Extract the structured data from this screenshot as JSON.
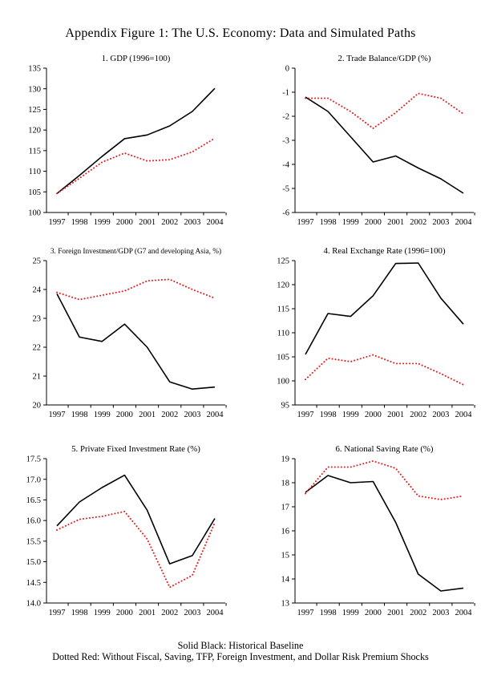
{
  "title": "Appendix Figure 1: The U.S. Economy: Data and Simulated Paths",
  "footer": {
    "line1": "Solid Black: Historical Baseline",
    "line2": "Dotted Red: Without Fiscal, Saving, TFP, Foreign Investment, and Dollar Risk Premium Shocks"
  },
  "colors": {
    "baseline": "#000000",
    "counterfactual": "#e62020"
  },
  "legend": [
    {
      "label": "Historical Baseline",
      "style": "solid-black"
    },
    {
      "label": "Without Fiscal, Saving, TFP, Foreign Investment, and Dollar Risk Premium Shocks",
      "style": "dotted-red"
    }
  ],
  "chart_data": [
    {
      "type": "line",
      "title": "1. GDP (1996=100)",
      "ylim": [
        100,
        135
      ],
      "yticks": [
        "100",
        "105",
        "110",
        "115",
        "120",
        "125",
        "130",
        "135"
      ],
      "categories": [
        "1997",
        "1998",
        "1999",
        "2000",
        "2001",
        "2002",
        "2003",
        "2004"
      ],
      "series": [
        {
          "name": "Historical Baseline",
          "style": "solid-black",
          "values": [
            104.6,
            109.0,
            113.6,
            117.9,
            118.8,
            121.0,
            124.5,
            130.1
          ]
        },
        {
          "name": "Without Shocks",
          "style": "dotted-red",
          "values": [
            104.6,
            108.3,
            112.2,
            114.4,
            112.5,
            112.8,
            114.7,
            118.0
          ]
        }
      ]
    },
    {
      "type": "line",
      "title": "2. Trade Balance/GDP (%)",
      "ylim": [
        -6,
        0
      ],
      "yticks": [
        "-6",
        "-5",
        "-4",
        "-3",
        "-2",
        "-1",
        "0"
      ],
      "categories": [
        "1997",
        "1998",
        "1999",
        "2000",
        "2001",
        "2002",
        "2003",
        "2004"
      ],
      "series": [
        {
          "name": "Historical Baseline",
          "style": "solid-black",
          "values": [
            -1.2,
            -1.8,
            -2.85,
            -3.9,
            -3.65,
            -4.15,
            -4.6,
            -5.2
          ]
        },
        {
          "name": "Without Shocks",
          "style": "dotted-red",
          "values": [
            -1.25,
            -1.25,
            -1.8,
            -2.5,
            -1.85,
            -1.05,
            -1.25,
            -1.9
          ]
        }
      ]
    },
    {
      "type": "line",
      "title": "3. Foreign Investment/GDP (G7 and developing Asia, %)",
      "ylim": [
        20,
        25
      ],
      "yticks": [
        "20",
        "21",
        "22",
        "23",
        "24",
        "25"
      ],
      "categories": [
        "1997",
        "1998",
        "1999",
        "2000",
        "2001",
        "2002",
        "2003",
        "2004"
      ],
      "series": [
        {
          "name": "Historical Baseline",
          "style": "solid-black",
          "values": [
            23.85,
            22.35,
            22.2,
            22.8,
            22.0,
            20.8,
            20.55,
            20.62
          ]
        },
        {
          "name": "Without Shocks",
          "style": "dotted-red",
          "values": [
            23.9,
            23.65,
            23.8,
            23.95,
            24.3,
            24.35,
            24.0,
            23.7
          ]
        }
      ]
    },
    {
      "type": "line",
      "title": "4. Real Exchange Rate (1996=100)",
      "ylim": [
        95,
        125
      ],
      "yticks": [
        "95",
        "100",
        "105",
        "110",
        "115",
        "120",
        "125"
      ],
      "categories": [
        "1997",
        "1998",
        "1999",
        "2000",
        "2001",
        "2002",
        "2003",
        "2004"
      ],
      "series": [
        {
          "name": "Historical Baseline",
          "style": "solid-black",
          "values": [
            105.5,
            114.0,
            113.4,
            117.7,
            124.4,
            124.5,
            117.2,
            111.8
          ]
        },
        {
          "name": "Without Shocks",
          "style": "dotted-red",
          "values": [
            100.3,
            104.7,
            104.0,
            105.4,
            103.6,
            103.6,
            101.5,
            99.2
          ]
        }
      ]
    },
    {
      "type": "line",
      "title": "5. Private Fixed Investment Rate (%)",
      "ylim": [
        14.0,
        17.5
      ],
      "yticks": [
        "14.0",
        "14.5",
        "15.0",
        "15.5",
        "16.0",
        "16.5",
        "17.0",
        "17.5"
      ],
      "categories": [
        "1997",
        "1998",
        "1999",
        "2000",
        "2001",
        "2002",
        "2003",
        "2004"
      ],
      "series": [
        {
          "name": "Historical Baseline",
          "style": "solid-black",
          "values": [
            15.87,
            16.45,
            16.8,
            17.1,
            16.25,
            14.95,
            15.15,
            16.05
          ]
        },
        {
          "name": "Without Shocks",
          "style": "dotted-red",
          "values": [
            15.77,
            16.03,
            16.1,
            16.22,
            15.55,
            14.38,
            14.67,
            15.95
          ]
        }
      ]
    },
    {
      "type": "line",
      "title": "6. National Saving Rate (%)",
      "ylim": [
        13,
        19
      ],
      "yticks": [
        "13",
        "14",
        "15",
        "16",
        "17",
        "18",
        "19"
      ],
      "categories": [
        "1997",
        "1998",
        "1999",
        "2000",
        "2001",
        "2002",
        "2003",
        "2004"
      ],
      "series": [
        {
          "name": "Historical Baseline",
          "style": "solid-black",
          "values": [
            17.6,
            18.3,
            18.0,
            18.05,
            16.35,
            14.2,
            13.5,
            13.62
          ]
        },
        {
          "name": "Without Shocks",
          "style": "dotted-red",
          "values": [
            17.55,
            18.65,
            18.65,
            18.9,
            18.6,
            17.45,
            17.3,
            17.45
          ]
        }
      ]
    }
  ]
}
